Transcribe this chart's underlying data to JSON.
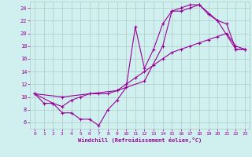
{
  "title": "",
  "xlabel": "Windchill (Refroidissement éolien,°C)",
  "bg_color": "#cff0ee",
  "grid_color": "#b0c8c8",
  "line_color": "#990099",
  "xlim": [
    -0.5,
    23.5
  ],
  "ylim": [
    5,
    25
  ],
  "xticks": [
    0,
    1,
    2,
    3,
    4,
    5,
    6,
    7,
    8,
    9,
    10,
    11,
    12,
    13,
    14,
    15,
    16,
    17,
    18,
    19,
    20,
    21,
    22,
    23
  ],
  "yticks": [
    6,
    8,
    10,
    12,
    14,
    16,
    18,
    20,
    22,
    24
  ],
  "series1_x": [
    0,
    1,
    2,
    3,
    4,
    5,
    6,
    7,
    8,
    9,
    10,
    11,
    12,
    13,
    14,
    15,
    16,
    17,
    18,
    19,
    20,
    21,
    22,
    23
  ],
  "series1_y": [
    10.5,
    9.0,
    9.0,
    7.5,
    7.5,
    6.5,
    6.5,
    5.5,
    8.0,
    9.5,
    11.5,
    21.0,
    14.5,
    17.5,
    21.5,
    23.5,
    23.5,
    24.0,
    24.5,
    23.0,
    22.0,
    21.5,
    17.5,
    17.5
  ],
  "series2_x": [
    0,
    2,
    3,
    4,
    5,
    6,
    7,
    8,
    9,
    10,
    11,
    12,
    13,
    14,
    15,
    16,
    17,
    18,
    19,
    20,
    21,
    22,
    23
  ],
  "series2_y": [
    10.5,
    9.0,
    8.5,
    9.5,
    10.0,
    10.5,
    10.5,
    10.5,
    11.0,
    12.0,
    13.0,
    14.0,
    15.0,
    16.0,
    17.0,
    17.5,
    18.0,
    18.5,
    19.0,
    19.5,
    20.0,
    18.0,
    17.5
  ],
  "series3_x": [
    0,
    3,
    6,
    9,
    12,
    14,
    15,
    16,
    17,
    18,
    20,
    22,
    23
  ],
  "series3_y": [
    10.5,
    10.0,
    10.5,
    11.0,
    12.5,
    18.0,
    23.5,
    24.0,
    24.5,
    24.5,
    22.0,
    17.5,
    17.5
  ]
}
